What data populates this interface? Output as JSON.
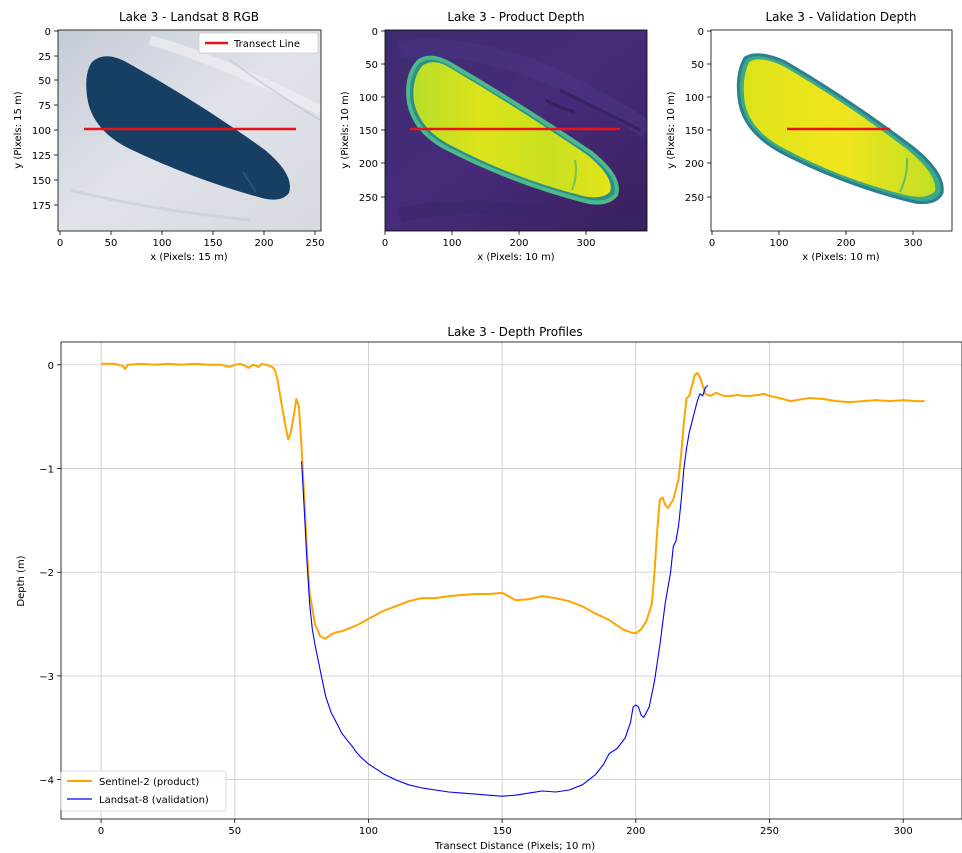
{
  "colors": {
    "product": "#FFA500",
    "validation": "#0000FF",
    "transect": "#E8141B",
    "grid": "#CFCFCF",
    "lake_dark": "#173F63",
    "ice": "#D4D8E0",
    "viridis_low": "#440154",
    "viridis_mid": "#21918C",
    "viridis_high": "#FDE725"
  },
  "panels": [
    {
      "title": "Lake 3 - Landsat 8 RGB",
      "xlabel": "x (Pixels: 15 m)",
      "ylabel": "y (Pixels: 15 m)",
      "xticks": [
        "0",
        "50",
        "100",
        "150",
        "200",
        "250"
      ],
      "yticks": [
        "0",
        "25",
        "50",
        "75",
        "100",
        "125",
        "150",
        "175"
      ],
      "legend": "Transect Line",
      "transect": {
        "x": [
          25,
          232
        ],
        "y": 100
      },
      "xlim": [
        0,
        257
      ],
      "ylim": [
        197,
        0
      ]
    },
    {
      "title": "Lake 3 - Product Depth",
      "xlabel": "x (Pixels: 10 m)",
      "ylabel": "y (Pixels: 10 m)",
      "xticks": [
        "0",
        "100",
        "200",
        "300"
      ],
      "yticks": [
        "0",
        "50",
        "100",
        "150",
        "200",
        "250"
      ],
      "transect": {
        "x": [
          37,
          345
        ],
        "y": 150
      },
      "xlim": [
        0,
        385
      ],
      "ylim": [
        295,
        0
      ]
    },
    {
      "title": "Lake 3 - Validation Depth",
      "xlabel": "x (Pixels: 10 m)",
      "ylabel": "y (Pixels: 10 m)",
      "xticks": [
        "0",
        "100",
        "200",
        "300"
      ],
      "yticks": [
        "0",
        "50",
        "100",
        "150",
        "200",
        "250"
      ],
      "transect": {
        "x": [
          113,
          268
        ],
        "y": 150
      },
      "xlim": [
        0,
        357
      ],
      "ylim": [
        295,
        0
      ]
    }
  ],
  "chart_data": {
    "type": "line",
    "title": "Lake 3 - Depth Profiles",
    "xlabel": "Transect Distance (Pixels; 10 m)",
    "ylabel": "Depth (m)",
    "xlim": [
      -15,
      322
    ],
    "ylim": [
      -4.38,
      0.22
    ],
    "xticks": [
      0,
      50,
      100,
      150,
      200,
      250,
      300
    ],
    "yticks": [
      0,
      -1,
      -2,
      -3,
      -4
    ],
    "grid": true,
    "legend_position": "lower-left",
    "series": [
      {
        "name": "Sentinel-2 (product)",
        "points": [
          [
            0,
            0.01
          ],
          [
            5,
            0.01
          ],
          [
            8,
            -0.01
          ],
          [
            9,
            -0.04
          ],
          [
            10,
            0.0
          ],
          [
            15,
            0.01
          ],
          [
            20,
            0.0
          ],
          [
            25,
            0.01
          ],
          [
            30,
            0.0
          ],
          [
            35,
            0.01
          ],
          [
            40,
            0.0
          ],
          [
            45,
            0.0
          ],
          [
            48,
            -0.02
          ],
          [
            50,
            0.0
          ],
          [
            52,
            0.01
          ],
          [
            54,
            -0.01
          ],
          [
            55,
            -0.03
          ],
          [
            57,
            0.0
          ],
          [
            59,
            -0.02
          ],
          [
            60,
            0.01
          ],
          [
            62,
            0.0
          ],
          [
            64,
            -0.02
          ],
          [
            65,
            -0.05
          ],
          [
            66,
            -0.15
          ],
          [
            67,
            -0.3
          ],
          [
            68,
            -0.45
          ],
          [
            69,
            -0.6
          ],
          [
            70,
            -0.72
          ],
          [
            71,
            -0.65
          ],
          [
            72,
            -0.5
          ],
          [
            73,
            -0.33
          ],
          [
            74,
            -0.4
          ],
          [
            75,
            -0.8
          ],
          [
            76,
            -1.3
          ],
          [
            77,
            -1.8
          ],
          [
            78,
            -2.2
          ],
          [
            80,
            -2.5
          ],
          [
            82,
            -2.62
          ],
          [
            84,
            -2.64
          ],
          [
            86,
            -2.6
          ],
          [
            88,
            -2.58
          ],
          [
            90,
            -2.57
          ],
          [
            92,
            -2.55
          ],
          [
            95,
            -2.52
          ],
          [
            98,
            -2.48
          ],
          [
            100,
            -2.45
          ],
          [
            105,
            -2.38
          ],
          [
            110,
            -2.33
          ],
          [
            115,
            -2.28
          ],
          [
            120,
            -2.25
          ],
          [
            125,
            -2.25
          ],
          [
            130,
            -2.23
          ],
          [
            135,
            -2.22
          ],
          [
            140,
            -2.21
          ],
          [
            145,
            -2.21
          ],
          [
            150,
            -2.2
          ],
          [
            153,
            -2.24
          ],
          [
            155,
            -2.27
          ],
          [
            160,
            -2.26
          ],
          [
            165,
            -2.23
          ],
          [
            170,
            -2.25
          ],
          [
            175,
            -2.28
          ],
          [
            180,
            -2.33
          ],
          [
            185,
            -2.4
          ],
          [
            190,
            -2.46
          ],
          [
            195,
            -2.55
          ],
          [
            198,
            -2.58
          ],
          [
            200,
            -2.59
          ],
          [
            202,
            -2.55
          ],
          [
            204,
            -2.47
          ],
          [
            206,
            -2.3
          ],
          [
            207,
            -2.0
          ],
          [
            208,
            -1.6
          ],
          [
            209,
            -1.3
          ],
          [
            210,
            -1.28
          ],
          [
            211,
            -1.35
          ],
          [
            212,
            -1.38
          ],
          [
            214,
            -1.3
          ],
          [
            216,
            -1.1
          ],
          [
            217,
            -0.85
          ],
          [
            218,
            -0.55
          ],
          [
            219,
            -0.32
          ],
          [
            220,
            -0.3
          ],
          [
            221,
            -0.2
          ],
          [
            222,
            -0.1
          ],
          [
            223,
            -0.08
          ],
          [
            224,
            -0.12
          ],
          [
            225,
            -0.2
          ],
          [
            226,
            -0.28
          ],
          [
            228,
            -0.3
          ],
          [
            230,
            -0.27
          ],
          [
            233,
            -0.3
          ],
          [
            236,
            -0.3
          ],
          [
            238,
            -0.29
          ],
          [
            240,
            -0.3
          ],
          [
            243,
            -0.3
          ],
          [
            246,
            -0.29
          ],
          [
            248,
            -0.28
          ],
          [
            250,
            -0.3
          ],
          [
            252,
            -0.31
          ],
          [
            255,
            -0.33
          ],
          [
            258,
            -0.35
          ],
          [
            260,
            -0.34
          ],
          [
            265,
            -0.32
          ],
          [
            270,
            -0.33
          ],
          [
            275,
            -0.35
          ],
          [
            280,
            -0.36
          ],
          [
            285,
            -0.35
          ],
          [
            290,
            -0.34
          ],
          [
            295,
            -0.35
          ],
          [
            300,
            -0.34
          ],
          [
            305,
            -0.35
          ],
          [
            308,
            -0.35
          ]
        ]
      },
      {
        "name": "Landsat-8 (validation)",
        "points": [
          [
            75,
            -0.93
          ],
          [
            76,
            -1.4
          ],
          [
            77,
            -1.9
          ],
          [
            78,
            -2.3
          ],
          [
            79,
            -2.55
          ],
          [
            80,
            -2.7
          ],
          [
            82,
            -2.95
          ],
          [
            84,
            -3.2
          ],
          [
            86,
            -3.35
          ],
          [
            88,
            -3.45
          ],
          [
            90,
            -3.55
          ],
          [
            92,
            -3.62
          ],
          [
            94,
            -3.68
          ],
          [
            95,
            -3.72
          ],
          [
            97,
            -3.78
          ],
          [
            100,
            -3.85
          ],
          [
            103,
            -3.9
          ],
          [
            106,
            -3.95
          ],
          [
            110,
            -4.0
          ],
          [
            115,
            -4.05
          ],
          [
            120,
            -4.08
          ],
          [
            125,
            -4.1
          ],
          [
            130,
            -4.12
          ],
          [
            135,
            -4.13
          ],
          [
            140,
            -4.14
          ],
          [
            145,
            -4.15
          ],
          [
            150,
            -4.16
          ],
          [
            155,
            -4.15
          ],
          [
            160,
            -4.13
          ],
          [
            165,
            -4.11
          ],
          [
            170,
            -4.12
          ],
          [
            175,
            -4.1
          ],
          [
            180,
            -4.05
          ],
          [
            185,
            -3.95
          ],
          [
            188,
            -3.85
          ],
          [
            190,
            -3.75
          ],
          [
            193,
            -3.7
          ],
          [
            196,
            -3.6
          ],
          [
            198,
            -3.45
          ],
          [
            199,
            -3.3
          ],
          [
            200,
            -3.28
          ],
          [
            201,
            -3.3
          ],
          [
            202,
            -3.38
          ],
          [
            203,
            -3.4
          ],
          [
            205,
            -3.3
          ],
          [
            207,
            -3.05
          ],
          [
            209,
            -2.7
          ],
          [
            211,
            -2.3
          ],
          [
            213,
            -2.0
          ],
          [
            214,
            -1.75
          ],
          [
            215,
            -1.7
          ],
          [
            216,
            -1.55
          ],
          [
            217,
            -1.3
          ],
          [
            218,
            -1.0
          ],
          [
            219,
            -0.8
          ],
          [
            220,
            -0.65
          ],
          [
            221,
            -0.55
          ],
          [
            222,
            -0.45
          ],
          [
            223,
            -0.35
          ],
          [
            224,
            -0.28
          ],
          [
            225,
            -0.3
          ],
          [
            226,
            -0.22
          ],
          [
            227,
            -0.2
          ]
        ]
      }
    ]
  }
}
